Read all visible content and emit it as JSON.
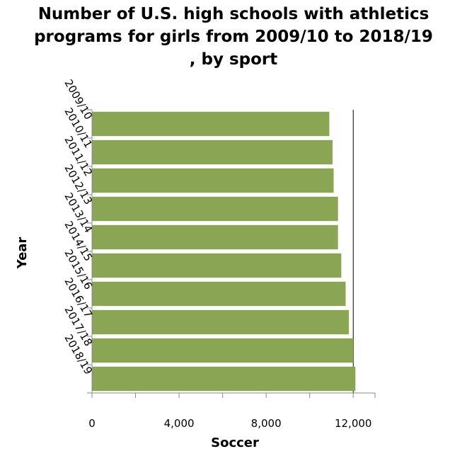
{
  "chart_data": {
    "type": "bar",
    "orientation": "horizontal",
    "title": "Number of U.S. high schools with athletics programs for girls from 2009/10 to 2018/19 , by sport",
    "title_lines": [
      "Number of U.S. high schools with athletics",
      "programs for girls from 2009/10 to 2018/19",
      ", by sport"
    ],
    "xlabel": "Soccer",
    "ylabel": "Year",
    "categories": [
      "2009/10",
      "2010/11",
      "2011/12",
      "2012/13",
      "2013/14",
      "2014/15",
      "2015/16",
      "2016/17",
      "2017/18",
      "2018/19"
    ],
    "values": [
      10900,
      11050,
      11100,
      11300,
      11300,
      11450,
      11650,
      11800,
      12000,
      12100
    ],
    "xlim": [
      0,
      13000
    ],
    "xticks": [
      0,
      4000,
      8000,
      12000
    ],
    "xtick_labels": [
      "0",
      "4,000",
      "8,000",
      "12,000"
    ],
    "grid": {
      "vertical_line_at": 12000
    },
    "bar_color": "#8aa655"
  }
}
